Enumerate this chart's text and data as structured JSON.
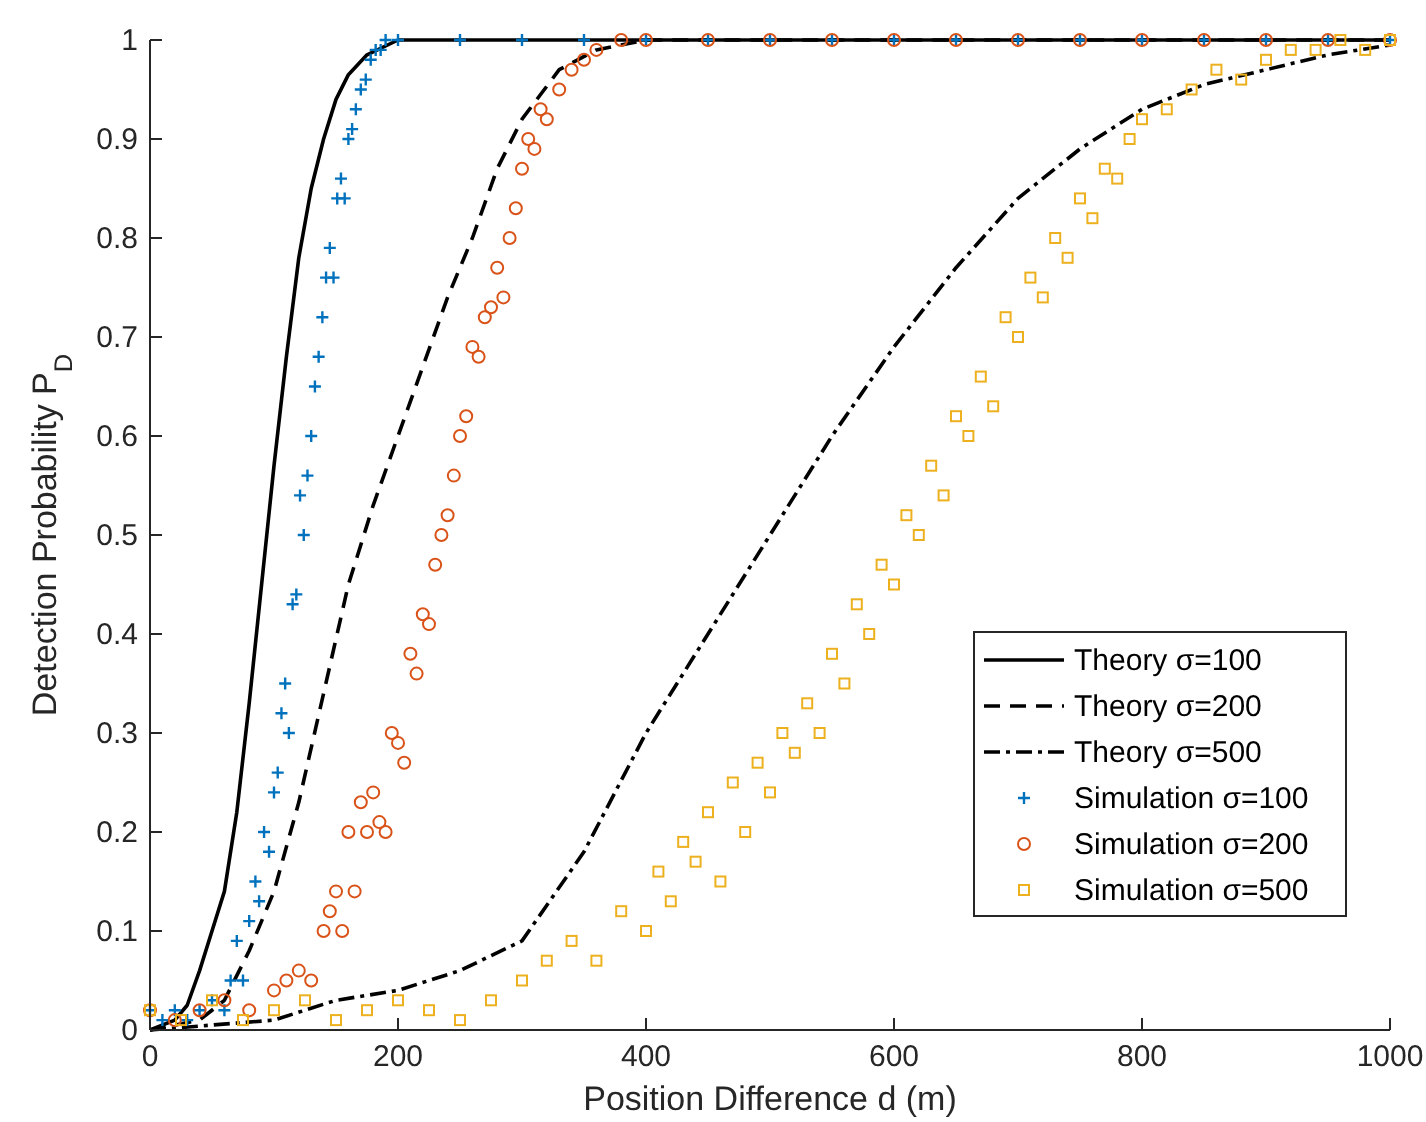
{
  "chart_data": {
    "type": "line",
    "xlabel": "Position Difference d (m)",
    "ylabel": "Detection Probability P$_{D}$",
    "xlim": [
      0,
      1000
    ],
    "ylim": [
      0,
      1
    ],
    "xticks": [
      0,
      200,
      400,
      600,
      800,
      1000
    ],
    "yticks": [
      0,
      0.1,
      0.2,
      0.3,
      0.4,
      0.5,
      0.6,
      0.7,
      0.8,
      0.9,
      1
    ],
    "grid": false,
    "legend": "bottom right",
    "series": [
      {
        "name": "Theory σ=100",
        "color": "#000000",
        "line_style": "solid",
        "x": [
          0,
          20,
          30,
          40,
          50,
          60,
          70,
          80,
          90,
          100,
          110,
          120,
          130,
          140,
          150,
          160,
          175,
          200,
          1000
        ],
        "values": [
          0,
          0.01,
          0.025,
          0.06,
          0.1,
          0.14,
          0.22,
          0.33,
          0.45,
          0.57,
          0.68,
          0.78,
          0.85,
          0.9,
          0.94,
          0.965,
          0.985,
          1,
          1
        ]
      },
      {
        "name": "Theory σ=200",
        "color": "#000000",
        "line_style": "dashed",
        "x": [
          0,
          40,
          60,
          80,
          100,
          120,
          140,
          160,
          180,
          200,
          220,
          240,
          260,
          280,
          300,
          330,
          360,
          400,
          1000
        ],
        "values": [
          0,
          0.01,
          0.03,
          0.08,
          0.14,
          0.23,
          0.34,
          0.45,
          0.53,
          0.6,
          0.67,
          0.74,
          0.8,
          0.87,
          0.92,
          0.97,
          0.99,
          1,
          1
        ]
      },
      {
        "name": "Theory σ=500",
        "color": "#000000",
        "line_style": "dashdot",
        "x": [
          0,
          100,
          150,
          200,
          250,
          300,
          350,
          400,
          450,
          500,
          550,
          600,
          650,
          700,
          750,
          800,
          850,
          900,
          950,
          1000
        ],
        "values": [
          0,
          0.01,
          0.03,
          0.04,
          0.06,
          0.09,
          0.18,
          0.3,
          0.4,
          0.5,
          0.6,
          0.69,
          0.77,
          0.84,
          0.89,
          0.93,
          0.955,
          0.97,
          0.985,
          0.995
        ]
      },
      {
        "name": "Simulation σ=100",
        "type": "scatter",
        "color": "#0072bd",
        "marker": "cross",
        "x": [
          0,
          10,
          20,
          30,
          40,
          50,
          60,
          65,
          70,
          75,
          80,
          85,
          88,
          92,
          96,
          100,
          103,
          106,
          109,
          112,
          115,
          118,
          121,
          124,
          127,
          130,
          133,
          136,
          139,
          142,
          145,
          148,
          151,
          154,
          157,
          160,
          163,
          166,
          170,
          174,
          178,
          182,
          186,
          190,
          200,
          250,
          300,
          350,
          400,
          450,
          500,
          550,
          600,
          650,
          700,
          750,
          800,
          850,
          900,
          950,
          1000
        ],
        "values": [
          0.02,
          0.01,
          0.02,
          0.01,
          0.02,
          0.03,
          0.02,
          0.05,
          0.09,
          0.05,
          0.11,
          0.15,
          0.13,
          0.2,
          0.18,
          0.24,
          0.26,
          0.32,
          0.35,
          0.3,
          0.43,
          0.44,
          0.54,
          0.5,
          0.56,
          0.6,
          0.65,
          0.68,
          0.72,
          0.76,
          0.79,
          0.76,
          0.84,
          0.86,
          0.84,
          0.9,
          0.91,
          0.93,
          0.95,
          0.96,
          0.98,
          0.99,
          0.99,
          1,
          1,
          1,
          1,
          1,
          1,
          1,
          1,
          1,
          1,
          1,
          1,
          1,
          1,
          1,
          1,
          1,
          1
        ]
      },
      {
        "name": "Simulation σ=200",
        "type": "scatter",
        "color": "#d95319",
        "marker": "circle",
        "x": [
          0,
          20,
          40,
          60,
          80,
          100,
          110,
          120,
          130,
          140,
          145,
          150,
          155,
          160,
          165,
          170,
          175,
          180,
          185,
          190,
          195,
          200,
          205,
          210,
          215,
          220,
          225,
          230,
          235,
          240,
          245,
          250,
          255,
          260,
          265,
          270,
          275,
          280,
          285,
          290,
          295,
          300,
          305,
          310,
          315,
          320,
          330,
          340,
          350,
          360,
          380,
          400,
          450,
          500,
          550,
          600,
          650,
          700,
          750,
          800,
          850,
          900,
          950,
          1000
        ],
        "values": [
          0.02,
          0.01,
          0.02,
          0.03,
          0.02,
          0.04,
          0.05,
          0.06,
          0.05,
          0.1,
          0.12,
          0.14,
          0.1,
          0.2,
          0.14,
          0.23,
          0.2,
          0.24,
          0.21,
          0.2,
          0.3,
          0.29,
          0.27,
          0.38,
          0.36,
          0.42,
          0.41,
          0.47,
          0.5,
          0.52,
          0.56,
          0.6,
          0.62,
          0.69,
          0.68,
          0.72,
          0.73,
          0.77,
          0.74,
          0.8,
          0.83,
          0.87,
          0.9,
          0.89,
          0.93,
          0.92,
          0.95,
          0.97,
          0.98,
          0.99,
          1,
          1,
          1,
          1,
          1,
          1,
          1,
          1,
          1,
          1,
          1,
          1,
          1,
          1
        ]
      },
      {
        "name": "Simulation σ=500",
        "type": "scatter",
        "color": "#edb120",
        "marker": "square",
        "x": [
          0,
          25,
          50,
          75,
          100,
          125,
          150,
          175,
          200,
          225,
          250,
          275,
          300,
          320,
          340,
          360,
          380,
          400,
          410,
          420,
          430,
          440,
          450,
          460,
          470,
          480,
          490,
          500,
          510,
          520,
          530,
          540,
          550,
          560,
          570,
          580,
          590,
          600,
          610,
          620,
          630,
          640,
          650,
          660,
          670,
          680,
          690,
          700,
          710,
          720,
          730,
          740,
          750,
          760,
          770,
          780,
          790,
          800,
          820,
          840,
          860,
          880,
          900,
          920,
          940,
          960,
          980,
          1000
        ],
        "values": [
          0.02,
          0.01,
          0.03,
          0.01,
          0.02,
          0.03,
          0.01,
          0.02,
          0.03,
          0.02,
          0.01,
          0.03,
          0.05,
          0.07,
          0.09,
          0.07,
          0.12,
          0.1,
          0.16,
          0.13,
          0.19,
          0.17,
          0.22,
          0.15,
          0.25,
          0.2,
          0.27,
          0.24,
          0.3,
          0.28,
          0.33,
          0.3,
          0.38,
          0.35,
          0.43,
          0.4,
          0.47,
          0.45,
          0.52,
          0.5,
          0.57,
          0.54,
          0.62,
          0.6,
          0.66,
          0.63,
          0.72,
          0.7,
          0.76,
          0.74,
          0.8,
          0.78,
          0.84,
          0.82,
          0.87,
          0.86,
          0.9,
          0.92,
          0.93,
          0.95,
          0.97,
          0.96,
          0.98,
          0.99,
          0.99,
          1,
          0.99,
          1
        ]
      }
    ]
  }
}
